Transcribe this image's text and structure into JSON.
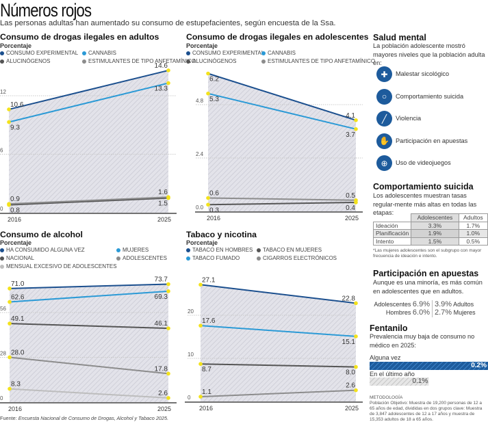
{
  "header": {
    "title": "Números rojos",
    "subtitle": "Las personas adultas han aumentado su consumo de estupefacientes, según encuesta de la Ssa."
  },
  "chart_data": [
    {
      "type": "line",
      "title": "Consumo de drogas ilegales en adultos",
      "ylabel": "Porcentaje",
      "categories": [
        "2016",
        "2025"
      ],
      "yticks": [
        "0",
        "6",
        "12"
      ],
      "ylim": [
        0,
        14.6
      ],
      "legend_placement": "top",
      "series": [
        {
          "name": "CONSUMO EXPERIMENTAL",
          "color": "#1b4f8e",
          "values": [
            10.6,
            14.6
          ],
          "labels": [
            "10.6",
            "14.6"
          ]
        },
        {
          "name": "CANNABIS",
          "color": "#2b9ad6",
          "values": [
            9.3,
            13.3
          ],
          "labels": [
            "9.3",
            "13.3"
          ]
        },
        {
          "name": "ALUCINÓGENOS",
          "color": "#555555",
          "values": [
            0.8,
            1.5
          ],
          "labels": [
            "0.8",
            "1.5"
          ]
        },
        {
          "name": "ESTIMULANTES DE TIPO ANFETAMÍNICO",
          "color": "#8c8c8c",
          "values": [
            0.9,
            1.6
          ],
          "labels": [
            "0.9",
            "1.6"
          ]
        }
      ]
    },
    {
      "type": "line",
      "title": "Consumo de drogas ilegales en adolescentes",
      "ylabel": "Porcentaje",
      "categories": [
        "2016",
        "2025"
      ],
      "yticks": [
        "0.0",
        "2.4",
        "4.8"
      ],
      "ylim": [
        0,
        6.2
      ],
      "legend_placement": "top",
      "series": [
        {
          "name": "CONSUMO EXPERIMENTAL",
          "color": "#1b4f8e",
          "values": [
            6.2,
            4.1
          ],
          "labels": [
            "6.2",
            "4.1"
          ]
        },
        {
          "name": "CANNABIS",
          "color": "#2b9ad6",
          "values": [
            5.3,
            3.7
          ],
          "labels": [
            "5.3",
            "3.7"
          ]
        },
        {
          "name": "ALUCINÓGENOS",
          "color": "#555555",
          "values": [
            0.3,
            0.4
          ],
          "labels": [
            "0.3",
            "0.4"
          ]
        },
        {
          "name": "ESTIMULANTES DE TIPO ANFETAMÍNICO",
          "color": "#8c8c8c",
          "values": [
            0.6,
            0.5
          ],
          "labels": [
            "0.6",
            "0.5"
          ]
        }
      ]
    },
    {
      "type": "line",
      "title": "Consumo de alcohol",
      "ylabel": "Porcentaje",
      "categories": [
        "2016",
        "2025"
      ],
      "yticks": [
        "0",
        "28",
        "56"
      ],
      "ylim": [
        0,
        73.7
      ],
      "legend_placement": "top",
      "series": [
        {
          "name": "HA CONSUMIDO ALGUNA VEZ",
          "color": "#1b4f8e",
          "values": [
            71.0,
            73.7
          ],
          "labels": [
            "71.0",
            "73.7"
          ]
        },
        {
          "name": "MUJERES",
          "color": "#2b9ad6",
          "values": [
            62.6,
            69.3
          ],
          "labels": [
            "62.6",
            "69.3"
          ]
        },
        {
          "name": "NACIONAL",
          "color": "#555555",
          "values": [
            49.1,
            46.1
          ],
          "labels": [
            "49.1",
            "46.1"
          ]
        },
        {
          "name": "ADOLESCENTES",
          "color": "#8c8c8c",
          "values": [
            28.0,
            17.8
          ],
          "labels": [
            "28.0",
            "17.8"
          ]
        },
        {
          "name": "MENSUAL EXCESIVO  DE ADOLESCENTES",
          "color": "#bdbdbd",
          "values": [
            8.3,
            2.6
          ],
          "labels": [
            "8.3",
            "2.6"
          ]
        }
      ]
    },
    {
      "type": "line",
      "title": "Tabaco y nicotina",
      "ylabel": "Porcentaje",
      "categories": [
        "2016",
        "2025"
      ],
      "yticks": [
        "0",
        "10",
        "20"
      ],
      "ylim": [
        0,
        27.1
      ],
      "legend_placement": "top",
      "series": [
        {
          "name": "TABACO EN HOMBRES",
          "color": "#1b4f8e",
          "values": [
            27.1,
            22.8
          ],
          "labels": [
            "27.1",
            "22.8"
          ]
        },
        {
          "name": "TABACO EN MUJERES",
          "color": "#555555",
          "values": [
            8.7,
            8.0
          ],
          "labels": [
            "8.7",
            "8.0"
          ]
        },
        {
          "name": "TABACO FUMADO",
          "color": "#2b9ad6",
          "values": [
            17.6,
            15.1
          ],
          "labels": [
            "17.6",
            "15.1"
          ]
        },
        {
          "name": "CIGARROS ELECTRÓNICOS",
          "color": "#8c8c8c",
          "values": [
            1.1,
            2.6
          ],
          "labels": [
            "1.1",
            "2.6"
          ]
        }
      ]
    }
  ],
  "source": {
    "prefix": "Fuente: ",
    "text": "Encuesta Nacional de Consumo de Drogas, Alcohol y Tabaco 2025."
  },
  "mental_health": {
    "title": "Salud mental",
    "description": "La población adolescente mostró mayores niveles que la población adulta en:",
    "items": [
      {
        "icon": "head-plus-icon",
        "label": "Malestar sicológico"
      },
      {
        "icon": "noose-icon",
        "label": "Comportamiento suicida"
      },
      {
        "icon": "knife-icon",
        "label": "Violencia"
      },
      {
        "icon": "betting-hand-icon",
        "label": "Participación en apuestas"
      },
      {
        "icon": "gamepad-icon",
        "label": "Uso de videojuegos"
      }
    ]
  },
  "suicidal": {
    "title": "Comportamiento suicida",
    "description": "Los adolescentes muestran tasas regular-mente más altas en todas las etapas:",
    "headers": [
      "",
      "Adolescentes",
      "Adultos"
    ],
    "rows": [
      [
        "Ideación",
        "3.3%",
        "1.7%"
      ],
      [
        "Planificación",
        "1.9%",
        "1.0%"
      ],
      [
        "Intento",
        "1.5%",
        "0.5%"
      ]
    ],
    "note": "*Las mujeres adolescentes son el subgrupo con mayor frecuencia de ideación e intento."
  },
  "betting": {
    "title": "Participación en apuestas",
    "description": "Aunque es una minoría, es más común en adolescentes que en adultos.",
    "stats": [
      {
        "left_label": "Adolescentes",
        "left_value": "6.9%",
        "right_value": "3.9%",
        "right_label": "Adultos"
      },
      {
        "left_label": "Hombres",
        "left_value": "6.0%",
        "right_value": "2.7%",
        "right_label": "Mujeres"
      }
    ]
  },
  "fentanyl": {
    "title": "Fentanilo",
    "description": "Prevalencia muy baja de consumo no médico en 2025:",
    "bars": [
      {
        "label": "Alguna vez",
        "value": "0.2%",
        "amount": 0.2,
        "color": "#1d5b9c"
      },
      {
        "label": "En el último año",
        "value": "0.1%",
        "amount": 0.1,
        "color": "#c8c8c8"
      }
    ]
  },
  "methodology": {
    "title": "METODOLOGÍA",
    "text": "Población Objetivo: Muestra de 19,200 personas de 12 a 65 años de edad, divididas en dos grupos clave: Muestra de 3,847 adolescentes de 12 a 17 años y muestra de 15,353 adultos de 18 a 65 años."
  }
}
